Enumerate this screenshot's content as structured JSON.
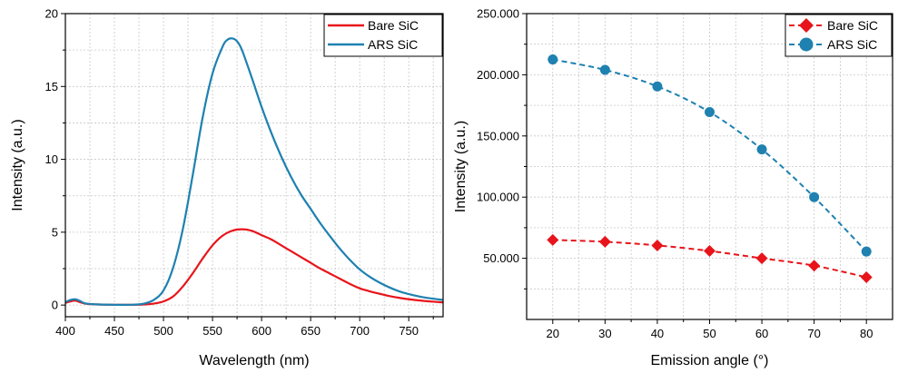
{
  "chart_data": [
    {
      "type": "line",
      "xlabel": "Wavelength (nm)",
      "ylabel": "Intensity (a.u.)",
      "xlim": [
        400,
        785
      ],
      "ylim": [
        -0.8,
        20
      ],
      "xticks": [
        400,
        450,
        500,
        550,
        600,
        650,
        700,
        750
      ],
      "yticks": [
        0,
        5,
        10,
        15,
        20
      ],
      "xtick_labels": [
        "400",
        "450",
        "500",
        "550",
        "600",
        "650",
        "700",
        "750"
      ],
      "ytick_labels": [
        "0",
        "5",
        "10",
        "15",
        "20"
      ],
      "grid": true,
      "legend_position": "top-right",
      "series": [
        {
          "name": "Bare SiC",
          "color": "#e8141b",
          "x": [
            400,
            405,
            410,
            415,
            420,
            430,
            450,
            470,
            480,
            490,
            500,
            510,
            520,
            530,
            540,
            550,
            560,
            570,
            580,
            590,
            600,
            610,
            620,
            630,
            640,
            650,
            660,
            670,
            680,
            690,
            700,
            710,
            720,
            730,
            740,
            750,
            760,
            770,
            785
          ],
          "y": [
            0.15,
            0.25,
            0.3,
            0.2,
            0.1,
            0.05,
            0.02,
            0.02,
            0.04,
            0.1,
            0.25,
            0.6,
            1.3,
            2.2,
            3.2,
            4.1,
            4.75,
            5.1,
            5.2,
            5.1,
            4.8,
            4.5,
            4.1,
            3.7,
            3.3,
            2.9,
            2.5,
            2.15,
            1.8,
            1.45,
            1.15,
            0.95,
            0.78,
            0.62,
            0.5,
            0.4,
            0.32,
            0.26,
            0.18
          ]
        },
        {
          "name": "ARS SiC",
          "color": "#1e81b0",
          "x": [
            400,
            405,
            410,
            415,
            420,
            430,
            450,
            470,
            480,
            490,
            500,
            510,
            520,
            530,
            540,
            550,
            560,
            565,
            570,
            575,
            580,
            590,
            600,
            610,
            620,
            630,
            640,
            650,
            660,
            670,
            680,
            690,
            700,
            710,
            720,
            730,
            740,
            750,
            760,
            770,
            785
          ],
          "y": [
            0.2,
            0.35,
            0.4,
            0.28,
            0.12,
            0.05,
            0.02,
            0.03,
            0.1,
            0.35,
            1.0,
            2.6,
            5.3,
            9.0,
            12.9,
            15.9,
            17.7,
            18.2,
            18.3,
            18.1,
            17.5,
            15.6,
            13.6,
            11.8,
            10.2,
            8.8,
            7.6,
            6.6,
            5.6,
            4.7,
            3.85,
            3.1,
            2.45,
            1.95,
            1.55,
            1.22,
            0.95,
            0.75,
            0.6,
            0.48,
            0.35
          ]
        }
      ]
    },
    {
      "type": "scatter",
      "xlabel": "Emission angle (°)",
      "ylabel": "Intensity (a.u.)",
      "xlim": [
        15,
        85
      ],
      "ylim": [
        0,
        250000
      ],
      "xticks": [
        20,
        30,
        40,
        50,
        60,
        70,
        80
      ],
      "yticks": [
        50000,
        100000,
        150000,
        200000,
        250000
      ],
      "xtick_labels": [
        "20",
        "30",
        "40",
        "50",
        "60",
        "70",
        "80"
      ],
      "ytick_labels": [
        "50.000",
        "100.000",
        "150.000",
        "200.000",
        "250.000"
      ],
      "grid": true,
      "legend_position": "top-right",
      "series": [
        {
          "name": "Bare SiC",
          "color": "#e8141b",
          "marker": "diamond",
          "line": "dashed",
          "x": [
            20,
            30,
            40,
            50,
            60,
            70,
            80
          ],
          "y": [
            65000,
            63500,
            60500,
            56000,
            50000,
            44000,
            34500
          ]
        },
        {
          "name": "ARS SiC",
          "color": "#1e81b0",
          "marker": "circle",
          "line": "dashed",
          "x": [
            20,
            30,
            40,
            50,
            60,
            70,
            80
          ],
          "y": [
            212500,
            204000,
            190500,
            169500,
            139000,
            100000,
            55500
          ]
        }
      ]
    }
  ]
}
